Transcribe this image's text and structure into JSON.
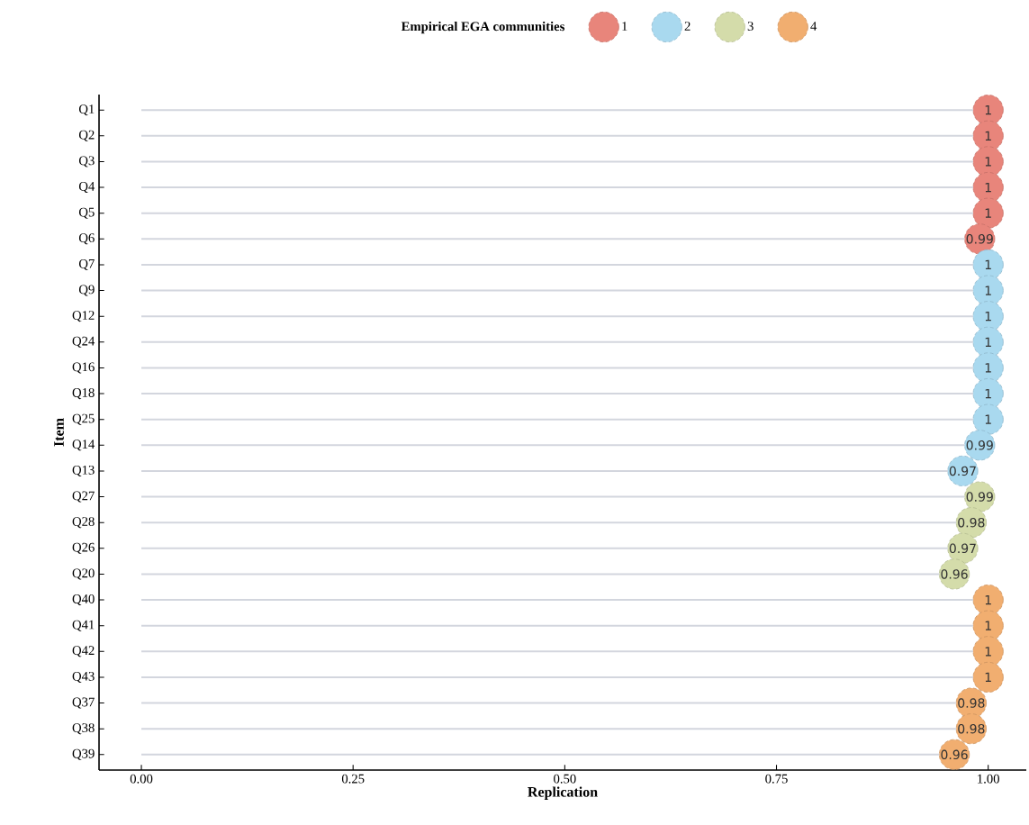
{
  "chart_data": {
    "type": "lollipop",
    "orientation": "horizontal",
    "xlabel": "Replication",
    "ylabel": "Item",
    "legend_title": "Empirical EGA communities",
    "legend": "top",
    "marker": "circle",
    "data_labels": true,
    "categories": [
      "Q1",
      "Q2",
      "Q3",
      "Q4",
      "Q5",
      "Q6",
      "Q7",
      "Q9",
      "Q12",
      "Q24",
      "Q16",
      "Q18",
      "Q25",
      "Q14",
      "Q13",
      "Q27",
      "Q28",
      "Q26",
      "Q20",
      "Q40",
      "Q41",
      "Q42",
      "Q43",
      "Q37",
      "Q38",
      "Q39"
    ],
    "xlim": [
      -0.05,
      1.045
    ],
    "xticks": [
      {
        "value": 0,
        "label": "0.00"
      },
      {
        "value": 0.25,
        "label": "0.25"
      },
      {
        "value": 0.5,
        "label": "0.50"
      },
      {
        "value": 0.75,
        "label": "0.75"
      },
      {
        "value": 1,
        "label": "1.00"
      }
    ],
    "series": [
      {
        "name": "1",
        "color": "#e8857b",
        "values": [
          1,
          1,
          1,
          1,
          1,
          0.99,
          null,
          null,
          null,
          null,
          null,
          null,
          null,
          null,
          null,
          null,
          null,
          null,
          null,
          null,
          null,
          null,
          null,
          null,
          null,
          null
        ]
      },
      {
        "name": "2",
        "color": "#a9d9ef",
        "values": [
          null,
          null,
          null,
          null,
          null,
          null,
          1,
          1,
          1,
          1,
          1,
          1,
          1,
          0.99,
          0.97,
          null,
          null,
          null,
          null,
          null,
          null,
          null,
          null,
          null,
          null,
          null
        ]
      },
      {
        "name": "3",
        "color": "#d4dcaa",
        "values": [
          null,
          null,
          null,
          null,
          null,
          null,
          null,
          null,
          null,
          null,
          null,
          null,
          null,
          null,
          null,
          0.99,
          0.98,
          0.97,
          0.96,
          null,
          null,
          null,
          null,
          null,
          null,
          null
        ]
      },
      {
        "name": "4",
        "color": "#f1ae70",
        "values": [
          null,
          null,
          null,
          null,
          null,
          null,
          null,
          null,
          null,
          null,
          null,
          null,
          null,
          null,
          null,
          null,
          null,
          null,
          null,
          1,
          1,
          1,
          1,
          0.98,
          0.98,
          0.96
        ]
      }
    ]
  }
}
